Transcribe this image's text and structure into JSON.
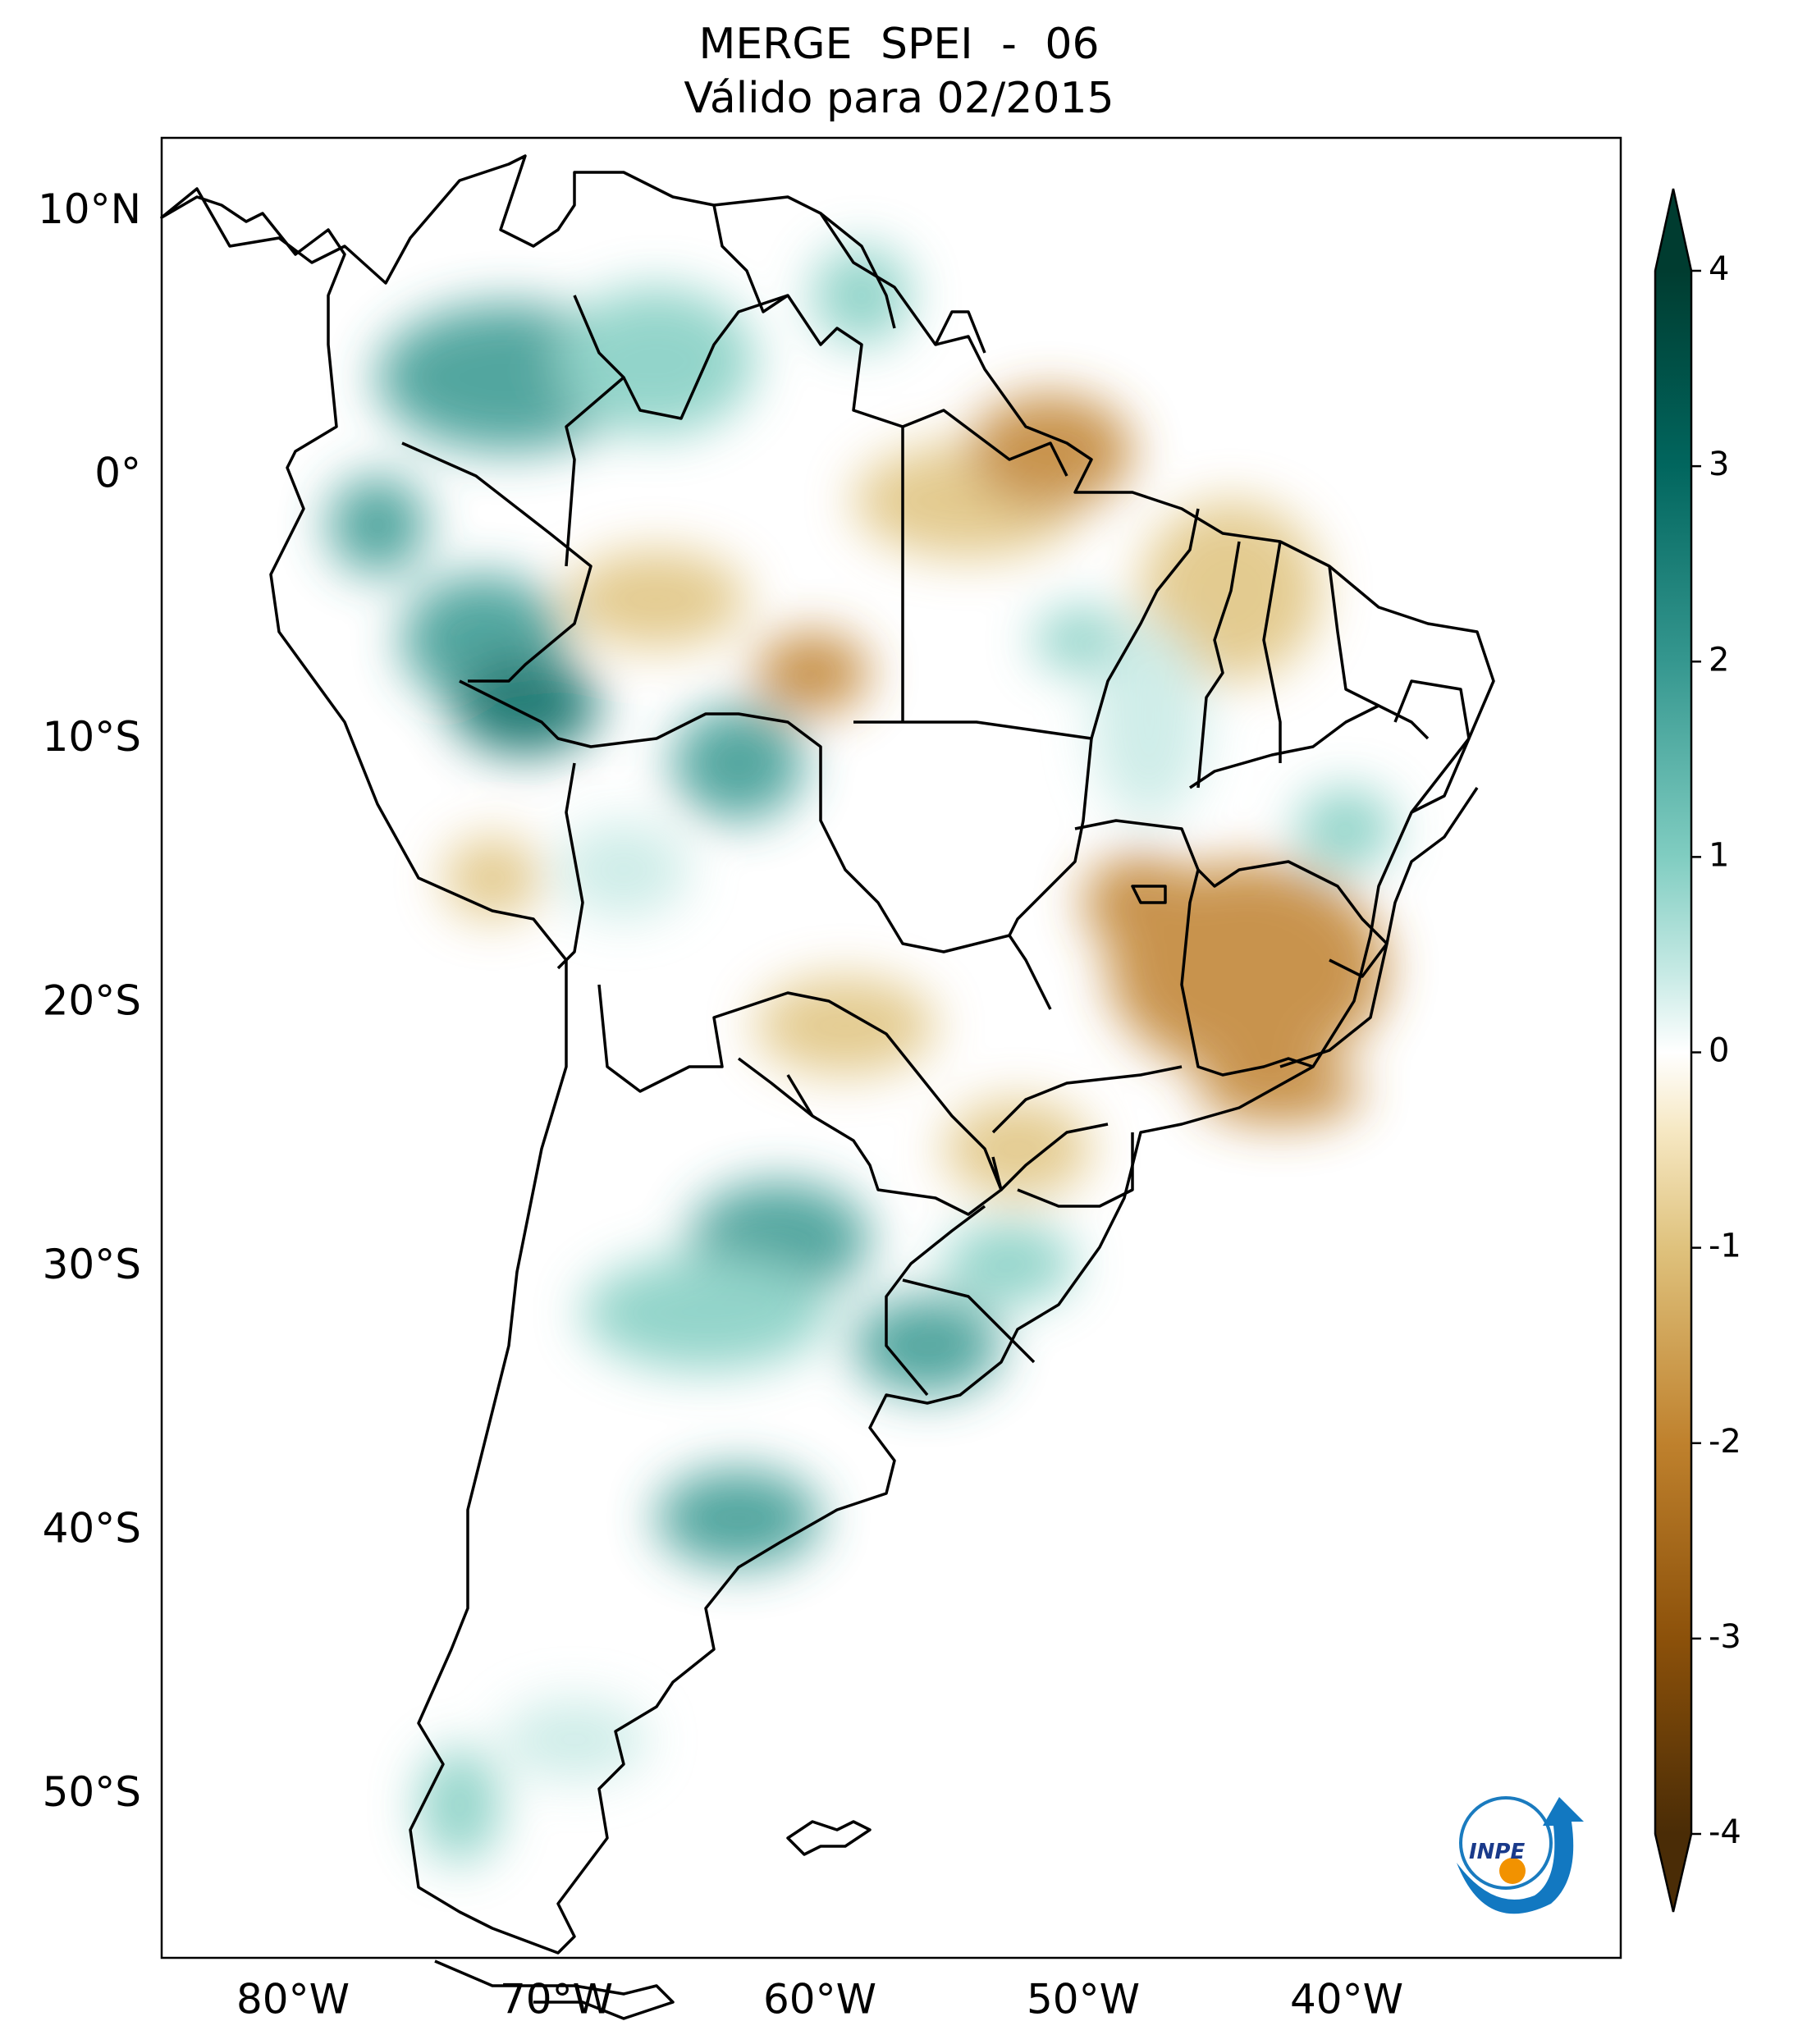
{
  "title": {
    "line1": "MERGE   SPEI - 06",
    "line2": "Válido para 02/2015"
  },
  "map": {
    "lat_ticks": [
      {
        "value": 10,
        "label": "10°N"
      },
      {
        "value": 0,
        "label": "0°"
      },
      {
        "value": -10,
        "label": "10°S"
      },
      {
        "value": -20,
        "label": "20°S"
      },
      {
        "value": -30,
        "label": "30°S"
      },
      {
        "value": -40,
        "label": "40°S"
      },
      {
        "value": -50,
        "label": "50°S"
      }
    ],
    "lon_ticks": [
      {
        "value": -80,
        "label": "80°W"
      },
      {
        "value": -70,
        "label": "70°W"
      },
      {
        "value": -60,
        "label": "60°W"
      },
      {
        "value": -50,
        "label": "50°W"
      },
      {
        "value": -40,
        "label": "40°W"
      }
    ],
    "extent": {
      "lon_min": -85,
      "lon_max": -30,
      "lat_min": -56,
      "lat_max": 13
    }
  },
  "colorbar": {
    "min": -4,
    "max": 4,
    "ticks": [
      {
        "value": 4,
        "label": "4"
      },
      {
        "value": 3,
        "label": "3"
      },
      {
        "value": 2,
        "label": "2"
      },
      {
        "value": 1,
        "label": "1"
      },
      {
        "value": 0,
        "label": "0"
      },
      {
        "value": -1,
        "label": "-1"
      },
      {
        "value": -2,
        "label": "-2"
      },
      {
        "value": -3,
        "label": "-3"
      },
      {
        "value": -4,
        "label": "-4"
      }
    ],
    "colors": [
      "#3d2402",
      "#8c510a",
      "#bf812d",
      "#dfc27d",
      "#f6e8c3",
      "#ffffff",
      "#c7eae5",
      "#80cdc1",
      "#35978f",
      "#01665e",
      "#003c30"
    ]
  },
  "logo": {
    "text": "INPE"
  }
}
